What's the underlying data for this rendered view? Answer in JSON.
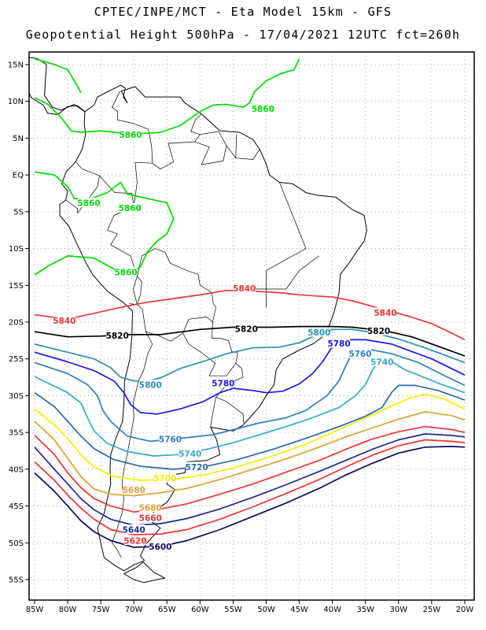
{
  "header": {
    "line1": "CPTEC/INPE/MCT -  Eta Model 15km - GFS",
    "line2": "Geopotential Height 500hPa - 17/04/2021 12UTC fct=260h"
  },
  "axes": {
    "lon_labels": [
      "85W",
      "80W",
      "75W",
      "70W",
      "65W",
      "60W",
      "55W",
      "50W",
      "45W",
      "40W",
      "35W",
      "30W",
      "25W",
      "20W"
    ],
    "lat_labels": [
      "15N",
      "10N",
      "5N",
      "EQ",
      "5S",
      "10S",
      "15S",
      "20S",
      "25S",
      "30S",
      "35S",
      "40S",
      "45S",
      "50S",
      "55S"
    ]
  },
  "colors": {
    "c5860": "#00dd00",
    "c5840": "#ee3333",
    "c5820": "#000000",
    "c5800": "#2a8fb0",
    "c5780": "#1a1aee",
    "c5760": "#2e7fc0",
    "c5740": "#33aacc",
    "c5720": "#2a6aa8",
    "c5700": "#f0f000",
    "c5680": "#e0a030",
    "c5660": "#ee3333",
    "c5640": "#1a2a90",
    "c5600": "#0a0a60",
    "coast": "#000000",
    "grid": "#999999"
  },
  "contours": [
    {
      "value": 5860,
      "label": "5860"
    },
    {
      "value": 5840,
      "label": "5840"
    },
    {
      "value": 5820,
      "label": "5820"
    },
    {
      "value": 5800,
      "label": "5800"
    },
    {
      "value": 5780,
      "label": "5780"
    },
    {
      "value": 5760,
      "label": "5760"
    },
    {
      "value": 5740,
      "label": "5740"
    },
    {
      "value": 5720,
      "label": "5720"
    },
    {
      "value": 5700,
      "label": "5700"
    },
    {
      "value": 5680,
      "label": "5680"
    },
    {
      "value": 5660,
      "label": "5660"
    },
    {
      "value": 5640,
      "label": "5640"
    },
    {
      "value": 5620,
      "label": "5620"
    },
    {
      "value": 5600,
      "label": "5600"
    }
  ],
  "labels": [
    {
      "text": "5860",
      "lon": -70.5,
      "lat": 5.5,
      "color": "c5860"
    },
    {
      "text": "5860",
      "lon": -50.5,
      "lat": 9.0,
      "color": "c5860"
    },
    {
      "text": "5860",
      "lon": -76.8,
      "lat": -3.8,
      "color": "c5860"
    },
    {
      "text": "5860",
      "lon": -70.6,
      "lat": -4.5,
      "color": "c5860"
    },
    {
      "text": "5860",
      "lon": -71.2,
      "lat": -13.2,
      "color": "c5860"
    },
    {
      "text": "5840",
      "lon": -80.5,
      "lat": -19.8,
      "color": "c5840"
    },
    {
      "text": "5840",
      "lon": -53.3,
      "lat": -15.4,
      "color": "c5840"
    },
    {
      "text": "5840",
      "lon": -32.0,
      "lat": -18.7,
      "color": "c5840"
    },
    {
      "text": "5820",
      "lon": -72.5,
      "lat": -21.8,
      "color": "c5820"
    },
    {
      "text": "5820",
      "lon": -53.0,
      "lat": -20.9,
      "color": "c5820"
    },
    {
      "text": "5820",
      "lon": -33.0,
      "lat": -21.2,
      "color": "c5820"
    },
    {
      "text": "5800",
      "lon": -67.5,
      "lat": -28.5,
      "color": "c5800"
    },
    {
      "text": "5800",
      "lon": -42.0,
      "lat": -21.4,
      "color": "c5800"
    },
    {
      "text": "5780",
      "lon": -56.5,
      "lat": -28.3,
      "color": "c5780"
    },
    {
      "text": "5780",
      "lon": -39.0,
      "lat": -22.9,
      "color": "c5780"
    },
    {
      "text": "5760",
      "lon": -64.5,
      "lat": -35.9,
      "color": "c5760"
    },
    {
      "text": "5760",
      "lon": -35.8,
      "lat": -24.3,
      "color": "c5760"
    },
    {
      "text": "5740",
      "lon": -61.5,
      "lat": -37.9,
      "color": "c5740"
    },
    {
      "text": "5740",
      "lon": -32.5,
      "lat": -25.4,
      "color": "c5740"
    },
    {
      "text": "5720",
      "lon": -60.5,
      "lat": -39.7,
      "color": "c5720"
    },
    {
      "text": "5700",
      "lon": -65.3,
      "lat": -41.2,
      "color": "c5700"
    },
    {
      "text": "5680",
      "lon": -70.0,
      "lat": -42.8,
      "color": "c5680"
    },
    {
      "text": "5680",
      "lon": -67.5,
      "lat": -45.2,
      "color": "c5680"
    },
    {
      "text": "5660",
      "lon": -67.5,
      "lat": -46.6,
      "color": "c5660"
    },
    {
      "text": "5640",
      "lon": -70.0,
      "lat": -48.2,
      "color": "c5640"
    },
    {
      "text": "5620",
      "lon": -69.8,
      "lat": -49.7,
      "color": "c5660"
    },
    {
      "text": "5600",
      "lon": -66.0,
      "lat": -50.5,
      "color": "c5600"
    }
  ]
}
